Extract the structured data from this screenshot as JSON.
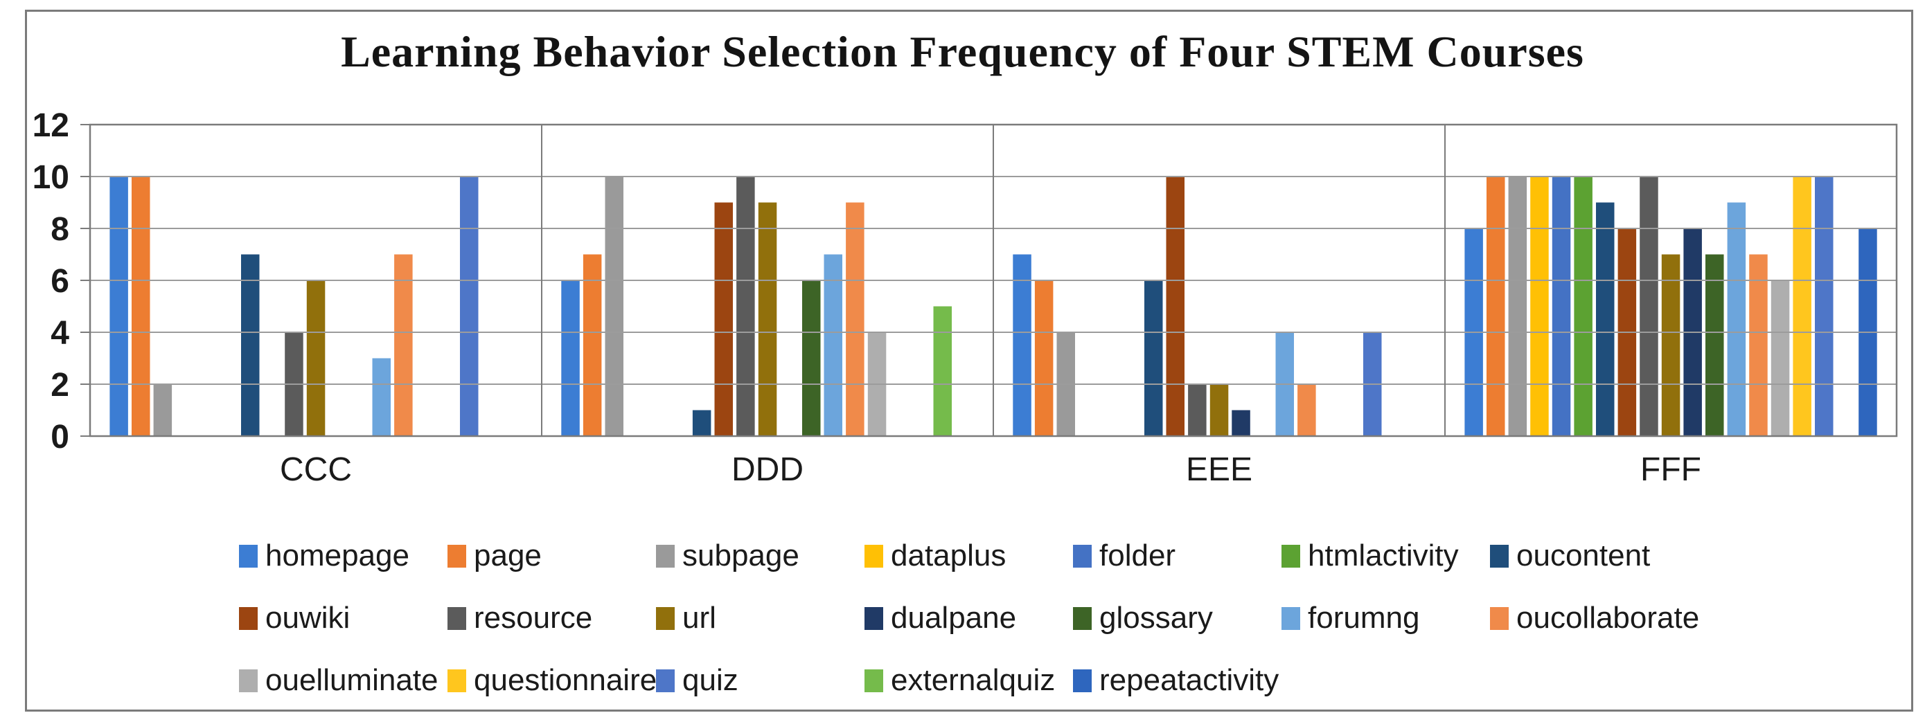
{
  "figure": {
    "title": "Learning Behavior Selection Frequency of Four STEM Courses"
  },
  "chart_data": {
    "type": "bar",
    "title": "Learning Behavior Selection Frequency of Four STEM Courses",
    "categories": [
      "CCC",
      "DDD",
      "EEE",
      "FFF"
    ],
    "series": [
      {
        "name": "homepage",
        "color": "#3C7DD3",
        "values": [
          10,
          6,
          7,
          8
        ]
      },
      {
        "name": "page",
        "color": "#ED7D31",
        "values": [
          10,
          7,
          6,
          10
        ]
      },
      {
        "name": "subpage",
        "color": "#9A9A9A",
        "values": [
          2,
          10,
          4,
          10
        ]
      },
      {
        "name": "dataplus",
        "color": "#FFC005",
        "values": [
          0,
          0,
          0,
          10
        ]
      },
      {
        "name": "folder",
        "color": "#4472C4",
        "values": [
          0,
          0,
          0,
          10
        ]
      },
      {
        "name": "htmlactivity",
        "color": "#5CA232",
        "values": [
          0,
          0,
          0,
          10
        ]
      },
      {
        "name": "oucontent",
        "color": "#1F4E7B",
        "values": [
          7,
          1,
          6,
          9
        ]
      },
      {
        "name": "ouwiki",
        "color": "#9C4511",
        "values": [
          0,
          9,
          10,
          8
        ]
      },
      {
        "name": "resource",
        "color": "#5B5B5B",
        "values": [
          4,
          10,
          2,
          10
        ]
      },
      {
        "name": "url",
        "color": "#91700C",
        "values": [
          6,
          9,
          2,
          7
        ]
      },
      {
        "name": "dualpane",
        "color": "#203A66",
        "values": [
          0,
          0,
          1,
          8
        ]
      },
      {
        "name": "glossary",
        "color": "#3D6426",
        "values": [
          0,
          6,
          0,
          7
        ]
      },
      {
        "name": "forumng",
        "color": "#6CA5DC",
        "values": [
          3,
          7,
          4,
          9
        ]
      },
      {
        "name": "oucollaborate",
        "color": "#F08A4A",
        "values": [
          7,
          9,
          2,
          7
        ]
      },
      {
        "name": "ouelluminate",
        "color": "#AEAEAE",
        "values": [
          0,
          4,
          0,
          6
        ]
      },
      {
        "name": "questionnaire",
        "color": "#FFC61E",
        "values": [
          0,
          0,
          0,
          10
        ]
      },
      {
        "name": "quiz",
        "color": "#4E76C8",
        "values": [
          10,
          0,
          4,
          10
        ]
      },
      {
        "name": "externalquiz",
        "color": "#75BB4B",
        "values": [
          0,
          5,
          0,
          0
        ]
      },
      {
        "name": "repeatactivity",
        "color": "#2E66BE",
        "values": [
          0,
          0,
          0,
          8
        ]
      }
    ],
    "xlabel": "",
    "ylabel": "",
    "ylim": [
      0,
      12
    ],
    "yticks": [
      0,
      2,
      4,
      6,
      8,
      10,
      12
    ],
    "grid": true,
    "grid_color": "#9C9C9C",
    "border_color": "#7B7B7B",
    "tick_label_color": "#1A1A1A",
    "legend_position": "bottom",
    "legend_rows": [
      7,
      7,
      5
    ]
  }
}
